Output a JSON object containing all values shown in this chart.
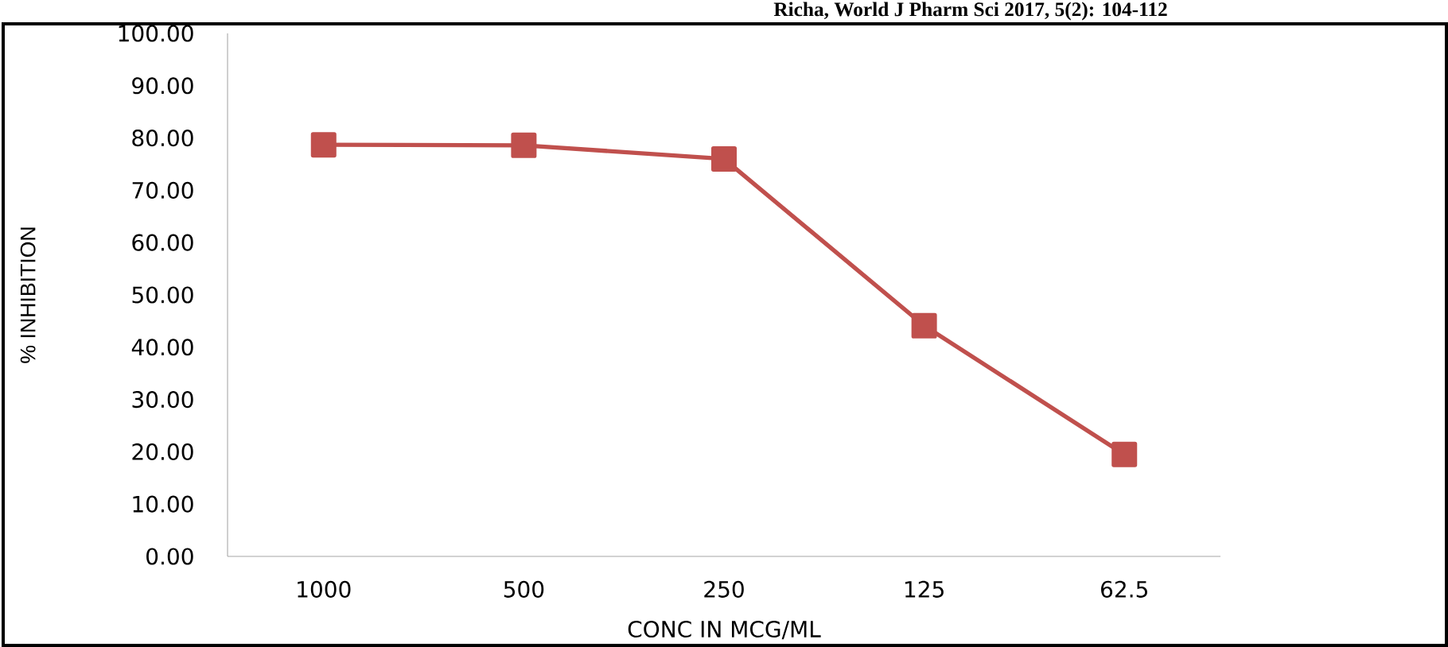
{
  "chart_data": {
    "type": "line",
    "xlabel": "CONC IN MCG/ML",
    "ylabel": "% INHIBITION",
    "annotations": [
      "Richa, World J Pharm Sci 2017, 5(2): 104-112"
    ],
    "categories": [
      "1000",
      "500",
      "250",
      "125",
      "62.5"
    ],
    "series": [
      {
        "color": "#c0504d",
        "values": [
          78.7,
          78.6,
          76.0,
          44.1,
          19.5
        ]
      }
    ],
    "ylim": [
      0,
      100
    ],
    "yticks": [
      {
        "value": 0,
        "label": "0.00"
      },
      {
        "value": 10,
        "label": "10.00"
      },
      {
        "value": 20,
        "label": "20.00"
      },
      {
        "value": 30,
        "label": "30.00"
      },
      {
        "value": 40,
        "label": "40.00"
      },
      {
        "value": 50,
        "label": "50.00"
      },
      {
        "value": 60,
        "label": "60.00"
      },
      {
        "value": 70,
        "label": "70.00"
      },
      {
        "value": 80,
        "label": "80.00"
      },
      {
        "value": 90,
        "label": "90.00"
      },
      {
        "value": 100,
        "label": "100.00"
      }
    ],
    "grid": false,
    "marker": "square",
    "line_style": "solid"
  }
}
